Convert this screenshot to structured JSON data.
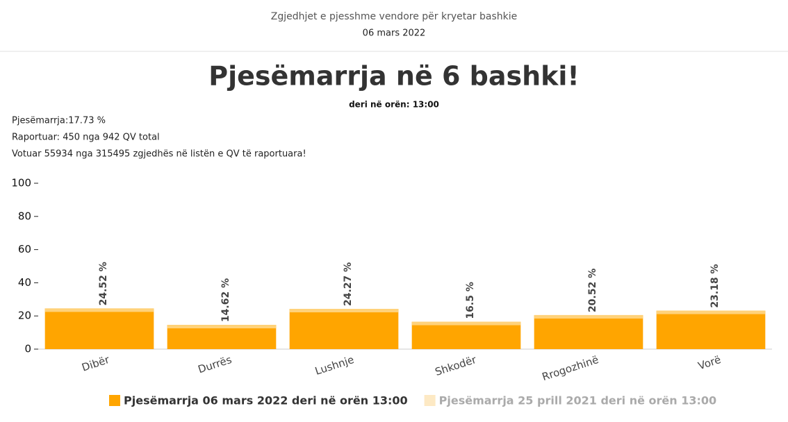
{
  "header": {
    "title": "Zgjedhjet e pjesshme vendore për kryetar bashkie",
    "date": "06 mars 2022"
  },
  "info": [
    "Pjesëmarrja:17.73 %",
    "Raportuar: 450 nga 942 QV total",
    "Votuar 55934 nga 315495 zgjedhës në listën e QV të raportuara!"
  ],
  "chart_data": {
    "type": "bar",
    "title": "Pjesëmarrja në 6 bashki!",
    "subtitle": "deri në orën: 13:00",
    "categories": [
      "Dibër",
      "Durrës",
      "Lushnje",
      "Shkodër",
      "Rrogozhinë",
      "Vorë"
    ],
    "series": [
      {
        "name": "Pjesëmarrja 06 mars 2022 deri në orën 13:00",
        "color": "#ffa500",
        "values": [
          24.52,
          14.62,
          24.27,
          16.5,
          20.52,
          23.18
        ],
        "value_labels": [
          "24.52 %",
          "14.62 %",
          "24.27 %",
          "16.5 %",
          "20.52 %",
          "23.18 %"
        ]
      },
      {
        "name": "Pjesëmarrja 25 prill 2021 deri në orën 13:00",
        "color": "#fde9c4",
        "visible": false
      }
    ],
    "ylim": [
      0,
      100
    ],
    "yticks": [
      0,
      20,
      40,
      60,
      80,
      100
    ],
    "grid": false,
    "legend": "bottom"
  }
}
